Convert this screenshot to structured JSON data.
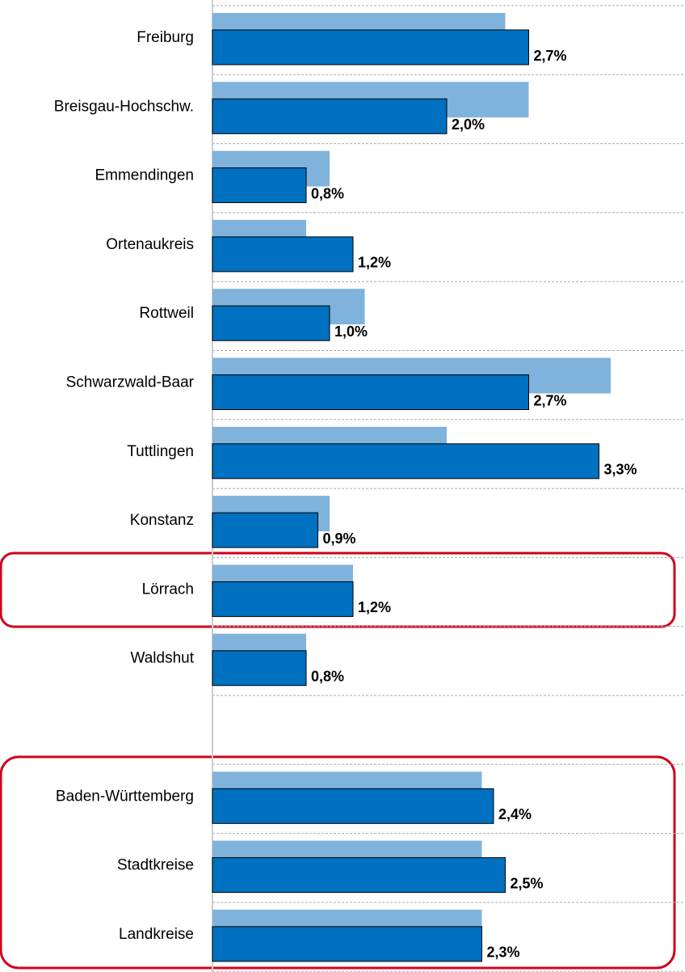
{
  "chart_data": {
    "type": "hbar",
    "categories": [
      "Freiburg",
      "Breisgau-Hochschw.",
      "Emmendingen",
      "Ortenaukreis",
      "Rottweil",
      "Schwarzwald-Baar",
      "Tuttlingen",
      "Konstanz",
      "Lörrach",
      "Waldshut",
      null,
      "Baden-Württemberg",
      "Stadtkreise",
      "Landkreise"
    ],
    "series": [
      {
        "color": "#7fb3dc",
        "values": [
          2.5,
          2.7,
          1.0,
          0.8,
          1.3,
          3.4,
          2.0,
          1.0,
          1.2,
          0.8,
          null,
          2.3,
          2.3,
          2.3
        ]
      },
      {
        "color": "#0070c0",
        "values": [
          2.7,
          2.0,
          0.8,
          1.2,
          1.0,
          2.7,
          3.3,
          0.9,
          1.2,
          0.8,
          null,
          2.4,
          2.5,
          2.3
        ],
        "value_labels": [
          "2,7%",
          "2,0%",
          "0,8%",
          "1,2%",
          "1,0%",
          "2,7%",
          "3,3%",
          "0,9%",
          "1,2%",
          "0,8%",
          null,
          "2,4%",
          "2,5%",
          "2,3%"
        ]
      }
    ],
    "xlim": [
      0,
      4
    ]
  }
}
